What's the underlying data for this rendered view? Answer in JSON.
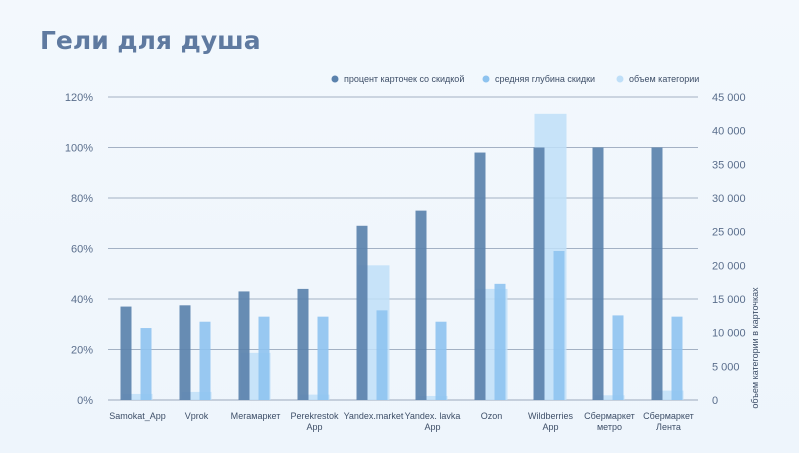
{
  "title": "Гели для душа",
  "colors": {
    "percent_cards": "#5b82ad",
    "avg_depth": "#8ec3ef",
    "category_volume": "#bfdff8"
  },
  "chart_data": {
    "type": "bar",
    "title": "Гели для душа",
    "categories": [
      [
        "Samokat_App"
      ],
      [
        "Vprok"
      ],
      [
        "Мегамаркет"
      ],
      [
        "Perekrestok",
        "App"
      ],
      [
        "Yandex.market"
      ],
      [
        "Yandex. lavka",
        "App"
      ],
      [
        "Ozon"
      ],
      [
        "Wildberries",
        "App"
      ],
      [
        "Сбермаркет",
        "метро"
      ],
      [
        "Сбермаркет",
        "Лента"
      ]
    ],
    "series": [
      {
        "name": "процент карточек со скидкой",
        "axis": "left",
        "values": [
          37,
          37.5,
          43,
          44,
          69,
          75,
          98,
          100,
          100,
          100
        ]
      },
      {
        "name": "средняя глубина скидки",
        "axis": "left",
        "values": [
          28.5,
          31,
          33,
          33,
          35.5,
          31,
          46,
          59,
          33.5,
          33
        ]
      },
      {
        "name": "объем категории",
        "axis": "right",
        "values": [
          900,
          1200,
          7000,
          800,
          20000,
          600,
          16500,
          42500,
          700,
          1400
        ]
      }
    ],
    "y_left": {
      "ylim": [
        0,
        120
      ],
      "ticks": [
        "0%",
        "20%",
        "40%",
        "60%",
        "80%",
        "100%",
        "120%"
      ]
    },
    "y_right": {
      "ylim": [
        0,
        45000
      ],
      "ticks": [
        "0",
        "5 000",
        "10 000",
        "15 000",
        "20 000",
        "25 000",
        "30 000",
        "35 000",
        "40 000",
        "45 000"
      ],
      "label": "объем категории в карточках"
    },
    "legend": "top-right",
    "grid": true
  }
}
